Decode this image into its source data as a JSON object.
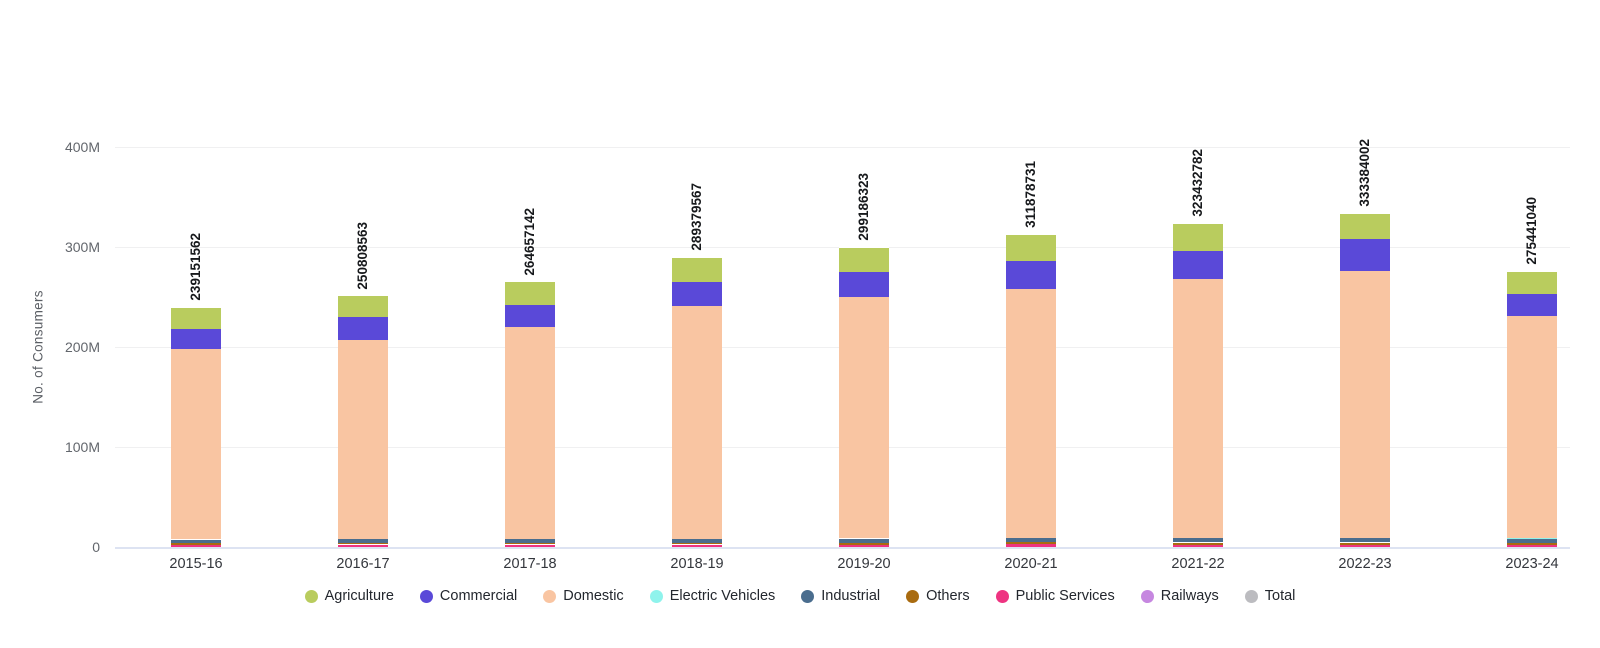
{
  "chart_data": {
    "type": "bar",
    "stacked": true,
    "title": "",
    "xlabel": "",
    "ylabel": "No. of Consumers",
    "categories": [
      "2015-16",
      "2016-17",
      "2017-18",
      "2018-19",
      "2019-20",
      "2020-21",
      "2021-22",
      "2022-23",
      "2023-24"
    ],
    "y_ticks": [
      {
        "label": "400M",
        "value": 400
      },
      {
        "label": "300M",
        "value": 300
      },
      {
        "label": "200M",
        "value": 200
      },
      {
        "label": "100M",
        "value": 100
      },
      {
        "label": "0",
        "value": 0
      }
    ],
    "ylim_millions": [
      0,
      400
    ],
    "grid": true,
    "legend_position": "bottom",
    "totals": [
      239151562,
      250808563,
      264657142,
      289379567,
      299186323,
      311878731,
      323432782,
      333384002,
      275441040
    ],
    "total_labels": [
      "239151562",
      "250808563",
      "264657142",
      "289379567",
      "299186323",
      "311878731",
      "323432782",
      "333384002",
      "275441040"
    ],
    "stack_order_bottom_to_top": [
      "Total",
      "Railways",
      "Public Services",
      "Others",
      "Industrial",
      "Electric Vehicles",
      "Domestic",
      "Commercial",
      "Agriculture"
    ],
    "series": [
      {
        "name": "Agriculture",
        "color": "#b9cc5e",
        "values_millions": [
          21,
          21,
          23,
          24,
          24,
          26,
          27,
          25,
          22
        ]
      },
      {
        "name": "Commercial",
        "color": "#5a49d8",
        "values_millions": [
          20,
          23,
          22,
          24,
          25,
          28,
          28,
          32,
          22.6
        ]
      },
      {
        "name": "Domestic",
        "color": "#f9c5a2",
        "values_millions": [
          190.6,
          198.9,
          211.5,
          233.0,
          241.7,
          249.2,
          259.7,
          267.45,
          222.0
        ]
      },
      {
        "name": "Electric Vehicles",
        "color": "#8ff3ec",
        "values_millions": [
          0,
          0,
          0,
          0,
          0.01,
          0.05,
          0.1,
          0.2,
          0.3
        ]
      },
      {
        "name": "Industrial",
        "color": "#4a6d8e",
        "values_millions": [
          3.6,
          3.7,
          3.8,
          4.0,
          4.0,
          4.0,
          4.1,
          4.2,
          4.0
        ]
      },
      {
        "name": "Others",
        "color": "#a96b10",
        "values_millions": [
          1.5,
          1.7,
          1.8,
          1.9,
          2.0,
          2.0,
          2.0,
          2.0,
          2.0
        ]
      },
      {
        "name": "Public Services",
        "color": "#ee3381",
        "values_millions": [
          2.4,
          2.5,
          2.5,
          2.5,
          2.5,
          2.6,
          2.5,
          2.5,
          2.5
        ]
      },
      {
        "name": "Railways",
        "color": "#c687e0",
        "values_millions": [
          0.03,
          0.03,
          0.03,
          0.03,
          0.03,
          0.03,
          0.03,
          0.03,
          0.03
        ]
      },
      {
        "name": "Total",
        "color": "#bcbcc0",
        "overlay": "top-label",
        "values_millions": [
          239.15,
          250.81,
          264.66,
          289.38,
          299.19,
          311.88,
          323.43,
          333.38,
          275.44
        ]
      }
    ],
    "legend": {
      "items": [
        {
          "label": "Agriculture",
          "color": "#b9cc5e"
        },
        {
          "label": "Commercial",
          "color": "#5a49d8"
        },
        {
          "label": "Domestic",
          "color": "#f9c5a2"
        },
        {
          "label": "Electric Vehicles",
          "color": "#8ff3ec"
        },
        {
          "label": "Industrial",
          "color": "#4a6d8e"
        },
        {
          "label": "Others",
          "color": "#a96b10"
        },
        {
          "label": "Public Services",
          "color": "#ee3381"
        },
        {
          "label": "Railways",
          "color": "#c687e0"
        },
        {
          "label": "Total",
          "color": "#bcbcc0"
        }
      ]
    },
    "colors": {
      "gridline": "#f0f0f1",
      "zero_axis_line": "#dde3f2",
      "y_tick_text": "#62666c",
      "x_tick_text": "#33363c",
      "total_label_text": "#17191c",
      "legend_text": "#23272e",
      "background": "#ffffff"
    }
  }
}
